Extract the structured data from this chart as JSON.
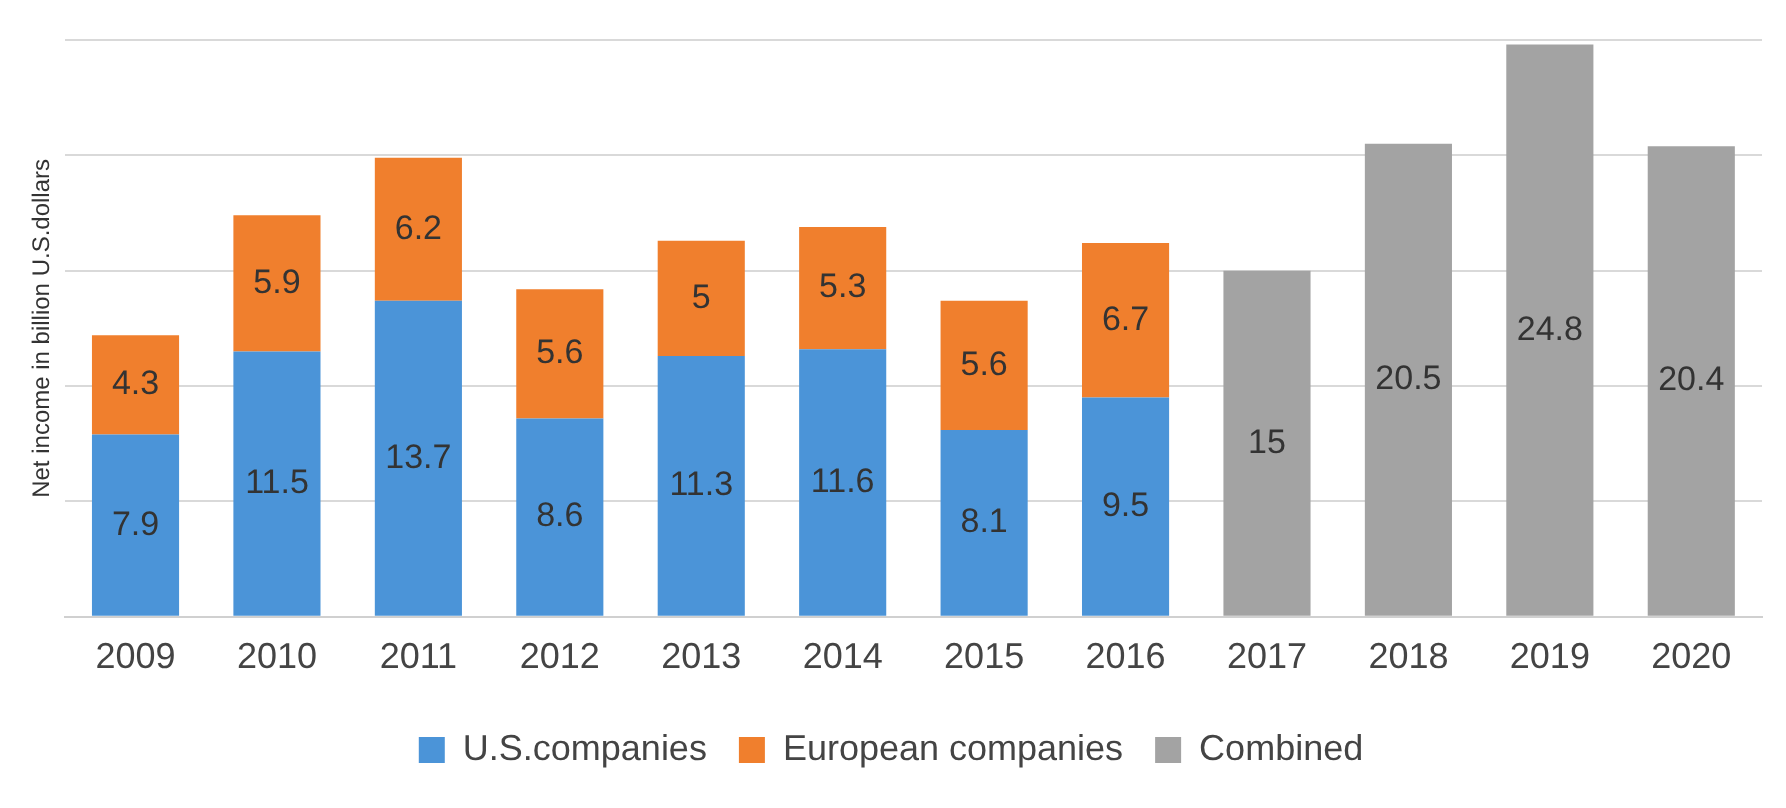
{
  "chart_data": {
    "type": "bar",
    "stacked": true,
    "ylabel": "Net income in billion U.S.dollars",
    "categories": [
      "2009",
      "2010",
      "2011",
      "2012",
      "2013",
      "2014",
      "2015",
      "2016",
      "2017",
      "2018",
      "2019",
      "2020"
    ],
    "series": [
      {
        "name": "U.S.companies",
        "color": "#4b94d8",
        "values": [
          7.9,
          11.5,
          13.7,
          8.6,
          11.3,
          11.6,
          8.1,
          9.5,
          null,
          null,
          null,
          null
        ]
      },
      {
        "name": "European companies",
        "color": "#f07f2d",
        "values": [
          4.3,
          5.9,
          6.2,
          5.6,
          5,
          5.3,
          5.6,
          6.7,
          null,
          null,
          null,
          null
        ]
      },
      {
        "name": "Combined",
        "color": "#a3a3a3",
        "values": [
          null,
          null,
          null,
          null,
          null,
          null,
          null,
          null,
          15,
          20.5,
          24.8,
          20.4
        ]
      }
    ],
    "ylim": [
      0,
      25
    ],
    "yticks": [
      {
        "value": 0,
        "label": null
      },
      {
        "value": 5,
        "label": null
      },
      {
        "value": 10,
        "label": null
      },
      {
        "value": 15,
        "label": null
      },
      {
        "value": 20,
        "label": null
      },
      {
        "value": 25,
        "label": null
      }
    ],
    "tick_labels": "x",
    "grid": "y",
    "legend": "bottom",
    "data_labels": true
  }
}
